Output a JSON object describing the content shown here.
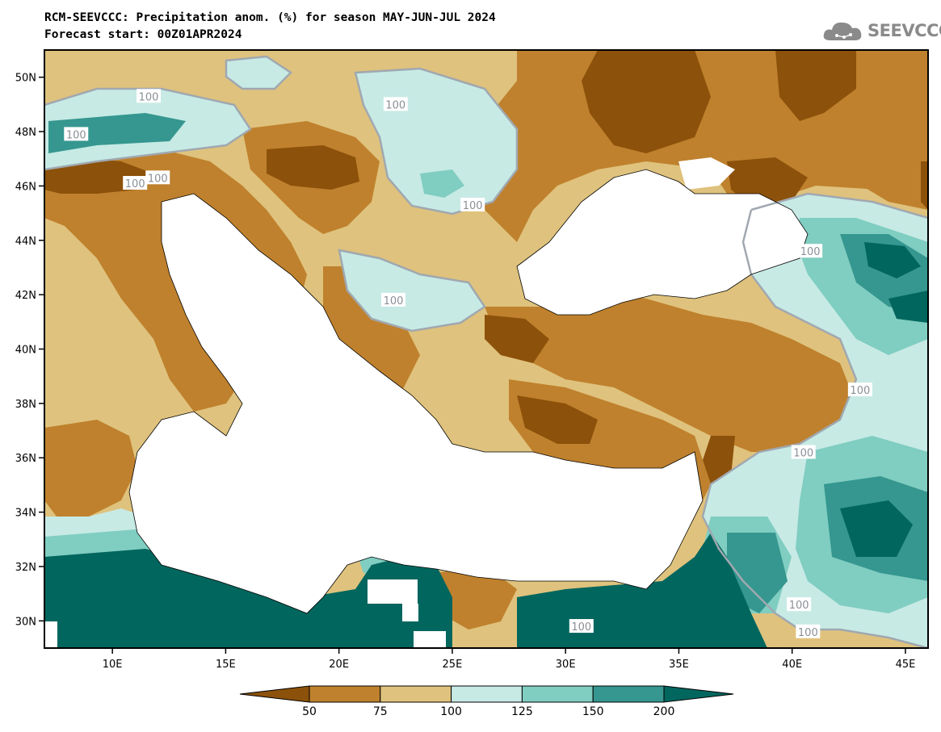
{
  "header": {
    "title_line1": "RCM-SEEVCCC: Precipitation anom. (%) for season MAY-JUN-JUL 2024",
    "title_line2": "Forecast start: 00Z01APR2024"
  },
  "logo": {
    "text": "SEEVCCC",
    "icon": "cloud-logo-icon"
  },
  "map": {
    "lon_range": [
      7,
      46
    ],
    "lat_range": [
      29,
      51
    ],
    "lon_ticks": [
      {
        "value": 10,
        "label": "10E"
      },
      {
        "value": 15,
        "label": "15E"
      },
      {
        "value": 20,
        "label": "20E"
      },
      {
        "value": 25,
        "label": "25E"
      },
      {
        "value": 30,
        "label": "30E"
      },
      {
        "value": 35,
        "label": "35E"
      },
      {
        "value": 40,
        "label": "40E"
      },
      {
        "value": 45,
        "label": "45E"
      }
    ],
    "lat_ticks": [
      {
        "value": 50,
        "label": "50N"
      },
      {
        "value": 48,
        "label": "48N"
      },
      {
        "value": 46,
        "label": "46N"
      },
      {
        "value": 44,
        "label": "44N"
      },
      {
        "value": 42,
        "label": "42N"
      },
      {
        "value": 40,
        "label": "40N"
      },
      {
        "value": 38,
        "label": "38N"
      },
      {
        "value": 36,
        "label": "36N"
      },
      {
        "value": 34,
        "label": "34N"
      },
      {
        "value": 32,
        "label": "32N"
      },
      {
        "value": 30,
        "label": "30N"
      }
    ],
    "contour_labels": [
      {
        "text": "100",
        "lon": 11.6,
        "lat": 49.3
      },
      {
        "text": "100",
        "lon": 22.5,
        "lat": 49.0
      },
      {
        "text": "100",
        "lon": 8.4,
        "lat": 47.9
      },
      {
        "text": "100",
        "lon": 11.0,
        "lat": 46.1
      },
      {
        "text": "100",
        "lon": 12.0,
        "lat": 46.3
      },
      {
        "text": "100",
        "lon": 25.9,
        "lat": 45.3
      },
      {
        "text": "100",
        "lon": 40.8,
        "lat": 43.6
      },
      {
        "text": "100",
        "lon": 22.4,
        "lat": 41.8
      },
      {
        "text": "100",
        "lon": 43.0,
        "lat": 38.5
      },
      {
        "text": "100",
        "lon": 40.5,
        "lat": 36.2
      },
      {
        "text": "100",
        "lon": 30.7,
        "lat": 29.8
      },
      {
        "text": "100",
        "lon": 40.3,
        "lat": 30.6
      },
      {
        "text": "100",
        "lon": 40.7,
        "lat": 29.6
      }
    ]
  },
  "colorbar": {
    "levels": [
      "50",
      "75",
      "100",
      "125",
      "150",
      "200"
    ],
    "colors": [
      "#8c510a",
      "#bf812d",
      "#dfc27d",
      "#c7eae5",
      "#80cdc1",
      "#35978f",
      "#01665e"
    ]
  },
  "palette": {
    "land_base": "#dfc27d",
    "sea": "#ffffff",
    "contour_line": "#a0a8b0"
  }
}
